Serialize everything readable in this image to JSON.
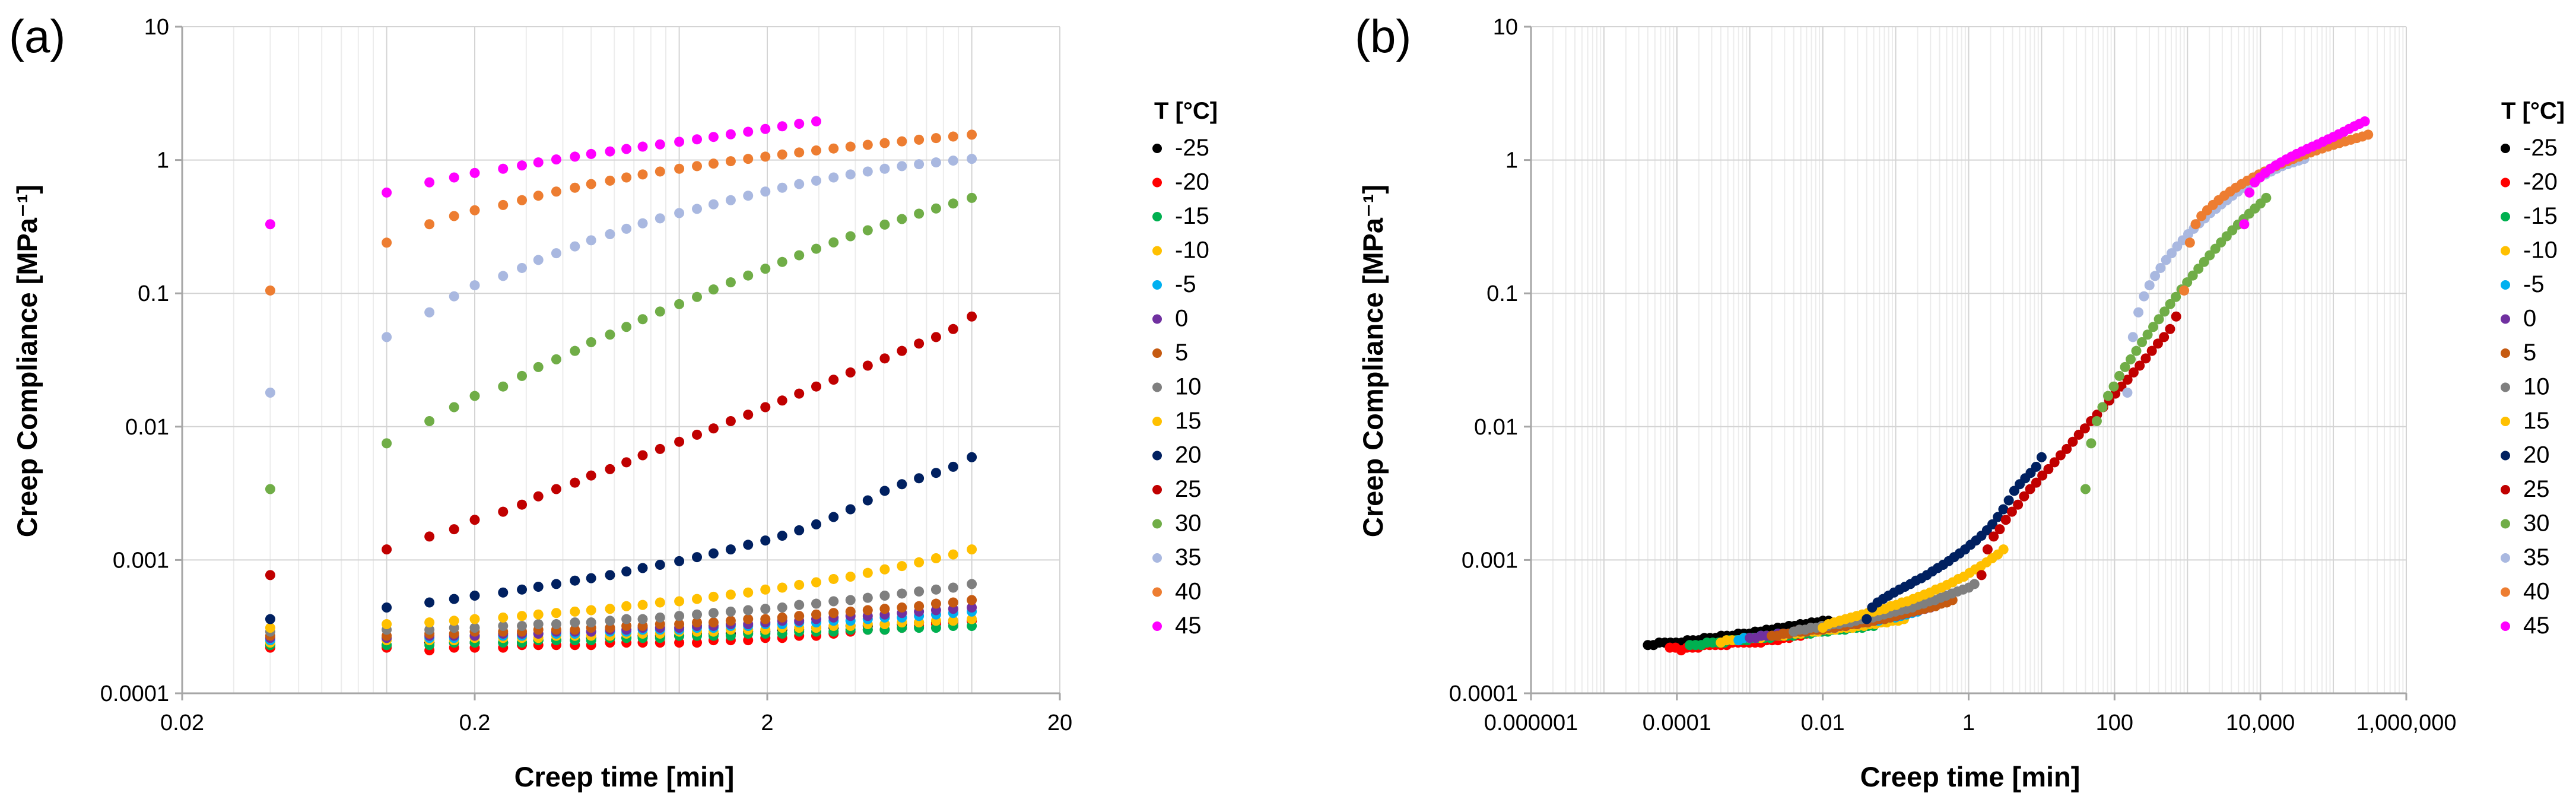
{
  "chart_data": [
    {
      "panel_label": "(a)",
      "type": "scatter",
      "xlabel": "Creep time [min]",
      "ylabel": "Creep Compliance [MPa⁻¹]",
      "x_scale": "log",
      "y_scale": "log",
      "xlim": [
        0.02,
        20
      ],
      "ylim": [
        0.0001,
        10
      ],
      "x_ticks": [
        0.02,
        0.2,
        2,
        20
      ],
      "x_tick_labels": [
        "0.02",
        "0.2",
        "2",
        "20"
      ],
      "y_ticks": [
        0.0001,
        0.001,
        0.01,
        0.1,
        1,
        10
      ],
      "y_tick_labels": [
        "0.0001",
        "0.001",
        "0.01",
        "0.1",
        "1",
        "10"
      ],
      "grid": true,
      "legend_title": "T [°C]",
      "legend_position": "right",
      "x": [
        0.04,
        0.1,
        0.14,
        0.17,
        0.2,
        0.25,
        0.29,
        0.33,
        0.38,
        0.44,
        0.5,
        0.58,
        0.66,
        0.75,
        0.86,
        1.0,
        1.15,
        1.31,
        1.5,
        1.72,
        1.97,
        2.25,
        2.57,
        2.94,
        3.37,
        3.85,
        4.41,
        5.04,
        5.77,
        6.6,
        7.55,
        8.64,
        10.0
      ],
      "series": [
        {
          "name": "-25",
          "color": "#000000",
          "values": [
            0.00023,
            0.00023,
            0.00024,
            0.00024,
            0.00024,
            0.00024,
            0.00024,
            0.00025,
            0.00025,
            0.00025,
            0.00026,
            0.00026,
            0.00026,
            0.00027,
            0.00027,
            0.00027,
            0.00028,
            0.00028,
            0.00028,
            0.00029,
            0.00029,
            0.0003,
            0.0003,
            0.00031,
            0.00031,
            0.00032,
            0.00032,
            0.00033,
            0.00033,
            0.00034,
            0.00034,
            0.00035,
            0.00035
          ]
        },
        {
          "name": "-20",
          "color": "#ff0000",
          "values": [
            0.00022,
            0.00022,
            0.00021,
            0.00022,
            0.00022,
            0.00022,
            0.00023,
            0.00023,
            0.00023,
            0.00023,
            0.00023,
            0.00024,
            0.00024,
            0.00024,
            0.00024,
            0.00024,
            0.00024,
            0.00025,
            0.00025,
            0.00025,
            0.00026,
            0.00026,
            0.00027,
            0.00027,
            0.00028,
            0.00029,
            0.0003,
            0.0003,
            0.00031,
            0.00032,
            0.00033,
            0.00034,
            0.00035
          ]
        },
        {
          "name": "-15",
          "color": "#00b050",
          "values": [
            0.00023,
            0.00023,
            0.00023,
            0.00024,
            0.00024,
            0.00024,
            0.00024,
            0.00025,
            0.00025,
            0.00025,
            0.00025,
            0.00026,
            0.00026,
            0.00026,
            0.00026,
            0.00027,
            0.00027,
            0.00027,
            0.00027,
            0.00028,
            0.00028,
            0.00028,
            0.00029,
            0.00029,
            0.00029,
            0.0003,
            0.0003,
            0.0003,
            0.00031,
            0.00031,
            0.00031,
            0.00032,
            0.00032
          ]
        },
        {
          "name": "-10",
          "color": "#ffc000",
          "values": [
            0.00024,
            0.00025,
            0.00025,
            0.00025,
            0.00026,
            0.00026,
            0.00026,
            0.00026,
            0.00027,
            0.00027,
            0.00027,
            0.00027,
            0.00028,
            0.00028,
            0.00028,
            0.00029,
            0.00029,
            0.00029,
            0.0003,
            0.0003,
            0.0003,
            0.00031,
            0.00031,
            0.00031,
            0.00032,
            0.00032,
            0.00033,
            0.00033,
            0.00034,
            0.00034,
            0.00035,
            0.00035,
            0.00036
          ]
        },
        {
          "name": "-5",
          "color": "#00b0f0",
          "values": [
            0.00025,
            0.00026,
            0.00026,
            0.00026,
            0.00027,
            0.00027,
            0.00027,
            0.00028,
            0.00028,
            0.00028,
            0.00029,
            0.00029,
            0.00029,
            0.0003,
            0.0003,
            0.0003,
            0.00031,
            0.00031,
            0.00032,
            0.00032,
            0.00033,
            0.00033,
            0.00034,
            0.00034,
            0.00035,
            0.00035,
            0.00036,
            0.00037,
            0.00037,
            0.00038,
            0.00039,
            0.0004,
            0.00041
          ]
        },
        {
          "name": "0",
          "color": "#7030a0",
          "values": [
            0.00026,
            0.00026,
            0.00027,
            0.00027,
            0.00027,
            0.00028,
            0.00028,
            0.00028,
            0.00029,
            0.00029,
            0.00029,
            0.0003,
            0.0003,
            0.00031,
            0.00031,
            0.00031,
            0.00032,
            0.00032,
            0.00033,
            0.00033,
            0.00034,
            0.00035,
            0.00035,
            0.00036,
            0.00037,
            0.00038,
            0.00038,
            0.00039,
            0.0004,
            0.00041,
            0.00042,
            0.00043,
            0.00044
          ]
        },
        {
          "name": "5",
          "color": "#c55a11",
          "values": [
            0.00027,
            0.00027,
            0.00028,
            0.00028,
            0.00029,
            0.00029,
            0.00029,
            0.0003,
            0.0003,
            0.0003,
            0.00031,
            0.00031,
            0.00032,
            0.00032,
            0.00033,
            0.00033,
            0.00034,
            0.00034,
            0.00035,
            0.00036,
            0.00036,
            0.00037,
            0.00038,
            0.00039,
            0.0004,
            0.00041,
            0.00042,
            0.00043,
            0.00044,
            0.00045,
            0.00047,
            0.00048,
            0.0005
          ]
        },
        {
          "name": "10",
          "color": "#7f7f7f",
          "values": [
            0.00029,
            0.0003,
            0.0003,
            0.00031,
            0.00031,
            0.00032,
            0.00032,
            0.00033,
            0.00033,
            0.00034,
            0.00034,
            0.00035,
            0.00036,
            0.00036,
            0.00037,
            0.00038,
            0.00039,
            0.0004,
            0.00041,
            0.00042,
            0.00043,
            0.00044,
            0.00046,
            0.00047,
            0.00049,
            0.0005,
            0.00052,
            0.00054,
            0.00056,
            0.00058,
            0.0006,
            0.00062,
            0.00066
          ]
        },
        {
          "name": "15",
          "color": "#ffc000",
          "values": [
            0.00031,
            0.00033,
            0.00034,
            0.00035,
            0.00036,
            0.00037,
            0.00038,
            0.00039,
            0.0004,
            0.00041,
            0.00042,
            0.00043,
            0.00045,
            0.00046,
            0.00048,
            0.00049,
            0.00051,
            0.00053,
            0.00055,
            0.00057,
            0.0006,
            0.00062,
            0.00065,
            0.00068,
            0.00072,
            0.00075,
            0.0008,
            0.00085,
            0.0009,
            0.00096,
            0.00103,
            0.0011,
            0.0012
          ]
        },
        {
          "name": "20",
          "color": "#002060",
          "values": [
            0.00036,
            0.00044,
            0.00048,
            0.00051,
            0.00054,
            0.00057,
            0.0006,
            0.00063,
            0.00066,
            0.0007,
            0.00073,
            0.00077,
            0.00082,
            0.00087,
            0.00092,
            0.00098,
            0.00105,
            0.00112,
            0.0012,
            0.0013,
            0.0014,
            0.00152,
            0.00167,
            0.00185,
            0.0021,
            0.0024,
            0.0028,
            0.0033,
            0.0037,
            0.0041,
            0.0045,
            0.005,
            0.0059
          ]
        },
        {
          "name": "25",
          "color": "#c00000",
          "values": [
            0.00077,
            0.0012,
            0.0015,
            0.0017,
            0.002,
            0.0023,
            0.0026,
            0.003,
            0.0034,
            0.0038,
            0.0043,
            0.0048,
            0.0054,
            0.0061,
            0.0068,
            0.0077,
            0.0087,
            0.0097,
            0.011,
            0.0123,
            0.014,
            0.0157,
            0.0177,
            0.02,
            0.0225,
            0.0255,
            0.0287,
            0.0325,
            0.037,
            0.042,
            0.047,
            0.054,
            0.067
          ]
        },
        {
          "name": "30",
          "color": "#70ad47",
          "values": [
            0.0034,
            0.0075,
            0.011,
            0.014,
            0.017,
            0.02,
            0.024,
            0.028,
            0.032,
            0.037,
            0.043,
            0.049,
            0.056,
            0.064,
            0.073,
            0.083,
            0.094,
            0.107,
            0.121,
            0.136,
            0.153,
            0.172,
            0.193,
            0.216,
            0.241,
            0.268,
            0.297,
            0.328,
            0.361,
            0.396,
            0.433,
            0.472,
            0.52
          ]
        },
        {
          "name": "35",
          "color": "#a9b8e0",
          "values": [
            0.018,
            0.047,
            0.072,
            0.095,
            0.115,
            0.135,
            0.155,
            0.178,
            0.2,
            0.225,
            0.25,
            0.278,
            0.305,
            0.335,
            0.365,
            0.4,
            0.43,
            0.465,
            0.5,
            0.54,
            0.58,
            0.62,
            0.66,
            0.7,
            0.74,
            0.78,
            0.82,
            0.86,
            0.9,
            0.93,
            0.96,
            0.99,
            1.02
          ]
        },
        {
          "name": "40",
          "color": "#ed7d31",
          "values": [
            0.105,
            0.24,
            0.33,
            0.38,
            0.42,
            0.46,
            0.5,
            0.54,
            0.58,
            0.62,
            0.66,
            0.7,
            0.74,
            0.78,
            0.82,
            0.86,
            0.9,
            0.94,
            0.98,
            1.02,
            1.06,
            1.1,
            1.14,
            1.18,
            1.22,
            1.26,
            1.3,
            1.34,
            1.38,
            1.42,
            1.46,
            1.5,
            1.55
          ]
        },
        {
          "name": "45",
          "color": "#ff00ff",
          "values": [
            0.33,
            0.57,
            0.68,
            0.74,
            0.8,
            0.86,
            0.91,
            0.96,
            1.01,
            1.06,
            1.11,
            1.16,
            1.21,
            1.26,
            1.31,
            1.37,
            1.43,
            1.49,
            1.56,
            1.63,
            1.71,
            1.79,
            1.87,
            1.95
          ]
        }
      ]
    },
    {
      "panel_label": "(b)",
      "type": "scatter",
      "xlabel": "Creep time [min]",
      "ylabel": "Creep Compliance [MPa⁻¹]",
      "x_scale": "log",
      "y_scale": "log",
      "xlim": [
        1e-06,
        1000000
      ],
      "ylim": [
        0.0001,
        10
      ],
      "x_ticks": [
        1e-06,
        0.0001,
        0.01,
        1,
        100,
        10000,
        1000000
      ],
      "x_tick_labels": [
        "0.000001",
        "0.0001",
        "0.01",
        "1",
        "100",
        "10,000",
        "1,000,000"
      ],
      "y_ticks": [
        0.0001,
        0.001,
        0.01,
        0.1,
        1,
        10
      ],
      "y_tick_labels": [
        "0.0001",
        "0.001",
        "0.01",
        "0.1",
        "1",
        "10"
      ],
      "grid": true,
      "legend_title": "T [°C]",
      "legend_position": "right",
      "shifted_x_start": {
        "-25": 4e-05,
        "-20": 8e-05,
        "-15": 0.00015,
        "-10": 0.0004,
        "-5": 0.0007,
        "0": 0.001,
        "5": 0.002,
        "10": 0.004,
        "15": 0.01,
        "20": 0.04,
        "25": 1.5,
        "30": 40,
        "35": 150,
        "40": 900,
        "45": 6000
      },
      "shifted_x_end": {
        "-25": 0.012,
        "-20": 0.025,
        "-15": 0.05,
        "-10": 0.13,
        "-5": 0.2,
        "0": 0.3,
        "5": 0.6,
        "10": 1.2,
        "15": 3,
        "20": 10,
        "25": 700,
        "30": 12000,
        "35": 40000,
        "40": 300000,
        "45": 270000
      }
    }
  ],
  "legend": {
    "title": "T [°C]",
    "entries": [
      {
        "label": "-25",
        "color": "#000000"
      },
      {
        "label": "-20",
        "color": "#ff0000"
      },
      {
        "label": "-15",
        "color": "#00b050"
      },
      {
        "label": "-10",
        "color": "#ffc000"
      },
      {
        "label": "-5",
        "color": "#00b0f0"
      },
      {
        "label": "0",
        "color": "#7030a0"
      },
      {
        "label": "5",
        "color": "#c55a11"
      },
      {
        "label": "10",
        "color": "#7f7f7f"
      },
      {
        "label": "15",
        "color": "#ffc000"
      },
      {
        "label": "20",
        "color": "#002060"
      },
      {
        "label": "25",
        "color": "#c00000"
      },
      {
        "label": "30",
        "color": "#70ad47"
      },
      {
        "label": "35",
        "color": "#a9b8e0"
      },
      {
        "label": "40",
        "color": "#ed7d31"
      },
      {
        "label": "45",
        "color": "#ff00ff"
      }
    ]
  }
}
